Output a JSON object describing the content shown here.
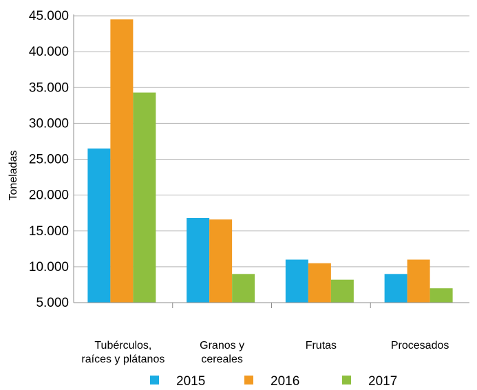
{
  "chart_data": {
    "type": "bar",
    "ylabel": "Toneladas",
    "xlabel": "",
    "ylim": [
      5000,
      45000
    ],
    "yticks": [
      5000,
      10000,
      15000,
      20000,
      25000,
      30000,
      35000,
      40000,
      45000
    ],
    "ytick_labels": [
      "5.000",
      "10.000",
      "15.000",
      "20.000",
      "25.000",
      "30.000",
      "35.000",
      "40.000",
      "45.000"
    ],
    "categories": [
      [
        "Tubérculos,",
        "raíces y plátanos"
      ],
      [
        "Granos y",
        "cereales"
      ],
      [
        "Frutas"
      ],
      [
        "Procesados"
      ]
    ],
    "series": [
      {
        "name": "2015",
        "color": "#1aace3",
        "values": [
          26500,
          16800,
          11000,
          9000
        ]
      },
      {
        "name": "2016",
        "color": "#f29a22",
        "values": [
          44500,
          16600,
          10500,
          11000
        ]
      },
      {
        "name": "2017",
        "color": "#8ebf3f",
        "values": [
          34300,
          9000,
          8200,
          7000
        ]
      }
    ],
    "grid": "horizontal",
    "legend_position": "bottom"
  }
}
